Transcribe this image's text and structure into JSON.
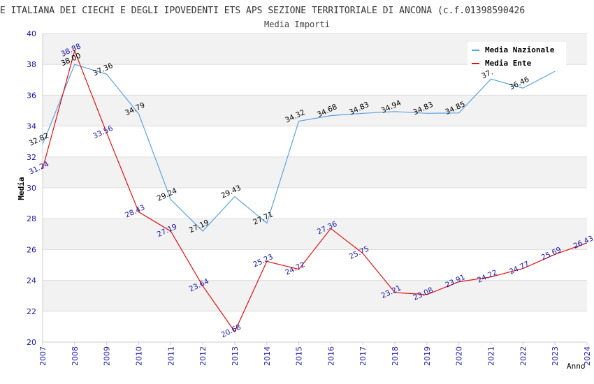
{
  "chart_data": {
    "type": "line",
    "title": "NE ITALIANA DEI CIECHI E DEGLI IPOVEDENTI ETS APS SEZIONE TERRITORIALE DI ANCONA (c.f.01398590426",
    "subtitle": "Media Importi",
    "xlabel": "Anno",
    "ylabel": "Media",
    "ylim": [
      20,
      40
    ],
    "yticks": [
      20,
      22,
      24,
      26,
      28,
      30,
      32,
      34,
      36,
      38,
      40
    ],
    "x": [
      "2007",
      "2008",
      "2009",
      "2010",
      "2011",
      "2012",
      "2013",
      "2014",
      "2015",
      "2016",
      "2017",
      "2018",
      "2019",
      "2020",
      "2021",
      "2022",
      "2023",
      "2024"
    ],
    "grid": true,
    "legend_position": "top-right",
    "series": [
      {
        "name": "Media Nazionale",
        "color": "#5ba3e0",
        "label_color": "#000000",
        "values": [
          32.82,
          38.0,
          37.36,
          34.79,
          29.24,
          27.19,
          29.43,
          27.71,
          34.32,
          34.68,
          34.83,
          34.94,
          34.83,
          34.85,
          37.05,
          36.46,
          37.55,
          null
        ],
        "labels": [
          "32.82",
          "38.00",
          "37.36",
          "34.79",
          "29.24",
          "27.19",
          "29.43",
          "27.71",
          "34.32",
          "34.68",
          "34.83",
          "34.94",
          "34.83",
          "34.85",
          "37.",
          "36.46",
          "",
          ""
        ]
      },
      {
        "name": "Media Ente",
        "color": "#e01010",
        "label_color": "#1a1aa6",
        "values": [
          31.24,
          38.88,
          33.56,
          28.43,
          27.19,
          23.64,
          20.68,
          25.23,
          24.72,
          27.36,
          25.75,
          23.21,
          23.08,
          23.91,
          24.22,
          24.77,
          25.69,
          26.43
        ],
        "labels": [
          "31.24",
          "38.88",
          "33.56",
          "28.43",
          "27.19",
          "23.64",
          "20.68",
          "25.23",
          "24.72",
          "27.36",
          "25.75",
          "23.21",
          "23.08",
          "23.91",
          "24.22",
          "24.77",
          "25.69",
          "26.43"
        ]
      }
    ]
  }
}
